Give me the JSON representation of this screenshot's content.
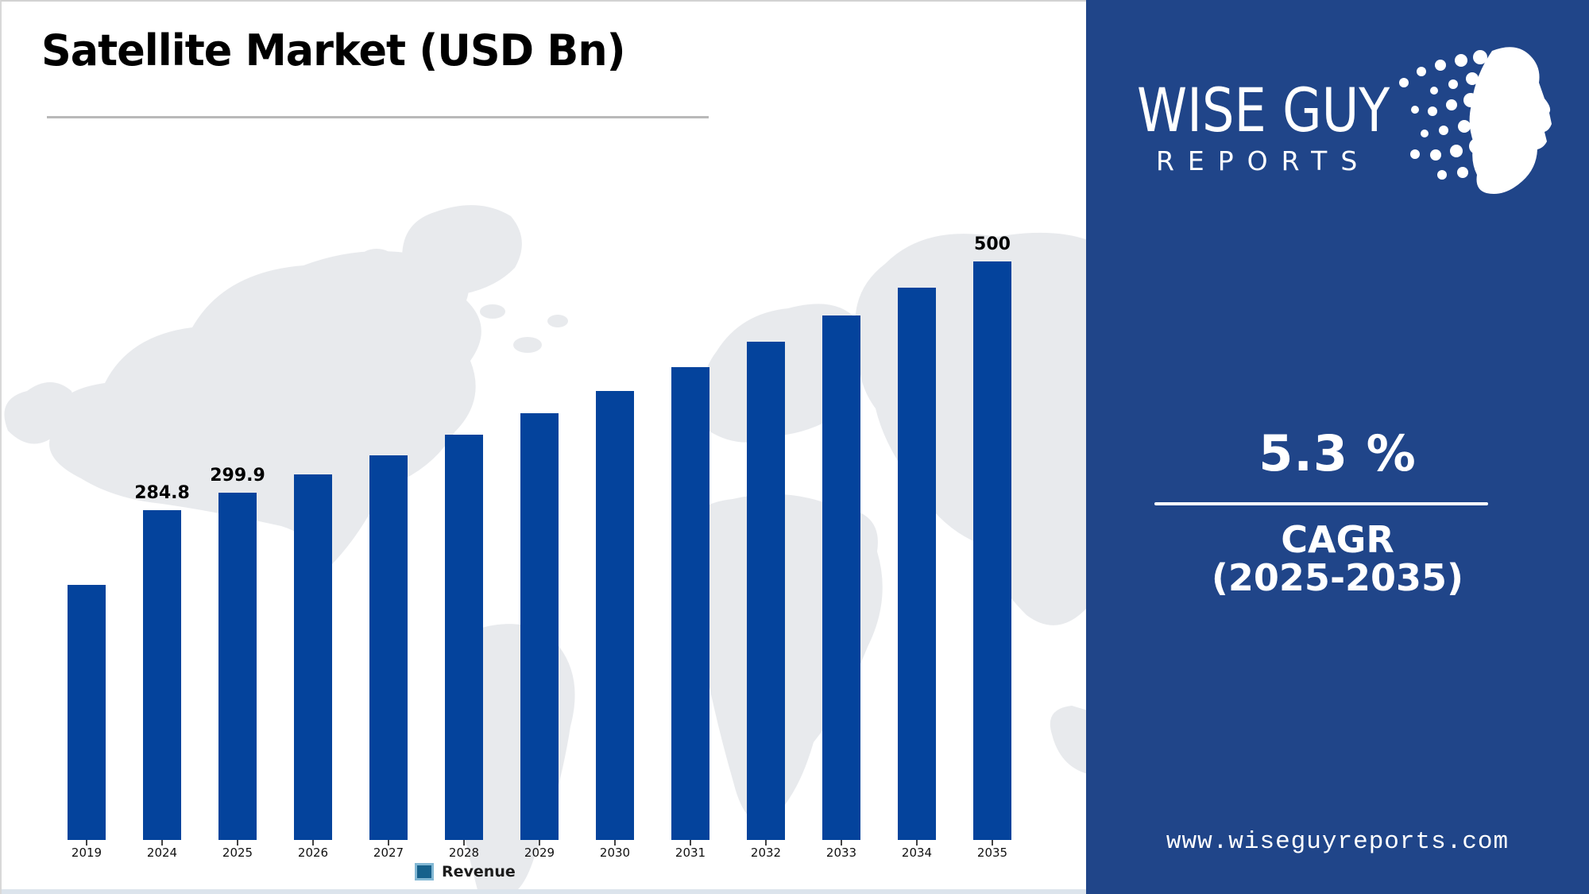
{
  "title": "Satellite Market (USD Bn)",
  "chart_data": {
    "type": "bar",
    "title": "Satellite Market (USD Bn)",
    "categories": [
      "2019",
      "2024",
      "2025",
      "2026",
      "2027",
      "2028",
      "2029",
      "2030",
      "2031",
      "2032",
      "2033",
      "2034",
      "2035"
    ],
    "values": [
      220.4,
      284.8,
      299.9,
      315.8,
      332.5,
      350.1,
      368.7,
      388.2,
      408.8,
      430.5,
      453.3,
      477.3,
      500
    ],
    "visible_value_labels": {
      "2024": "284.8",
      "2025": "299.9",
      "2035": "500"
    },
    "ylim": [
      0,
      500
    ],
    "xlabel": "",
    "ylabel": "",
    "grid": false,
    "bar_color": "#04439c",
    "background": "world-map-silhouette",
    "legend": {
      "label": "Revenue",
      "position": "bottom-center",
      "swatch_color": "#16618c"
    }
  },
  "sidebar": {
    "brand_line1": "WISE GUY",
    "brand_line2": "REPORTS",
    "cagr_value": "5.3 %",
    "cagr_label_line1": "CAGR",
    "cagr_label_line2": "(2025-2035)",
    "website": "www.wiseguyreports.com",
    "background_color": "#204589"
  }
}
